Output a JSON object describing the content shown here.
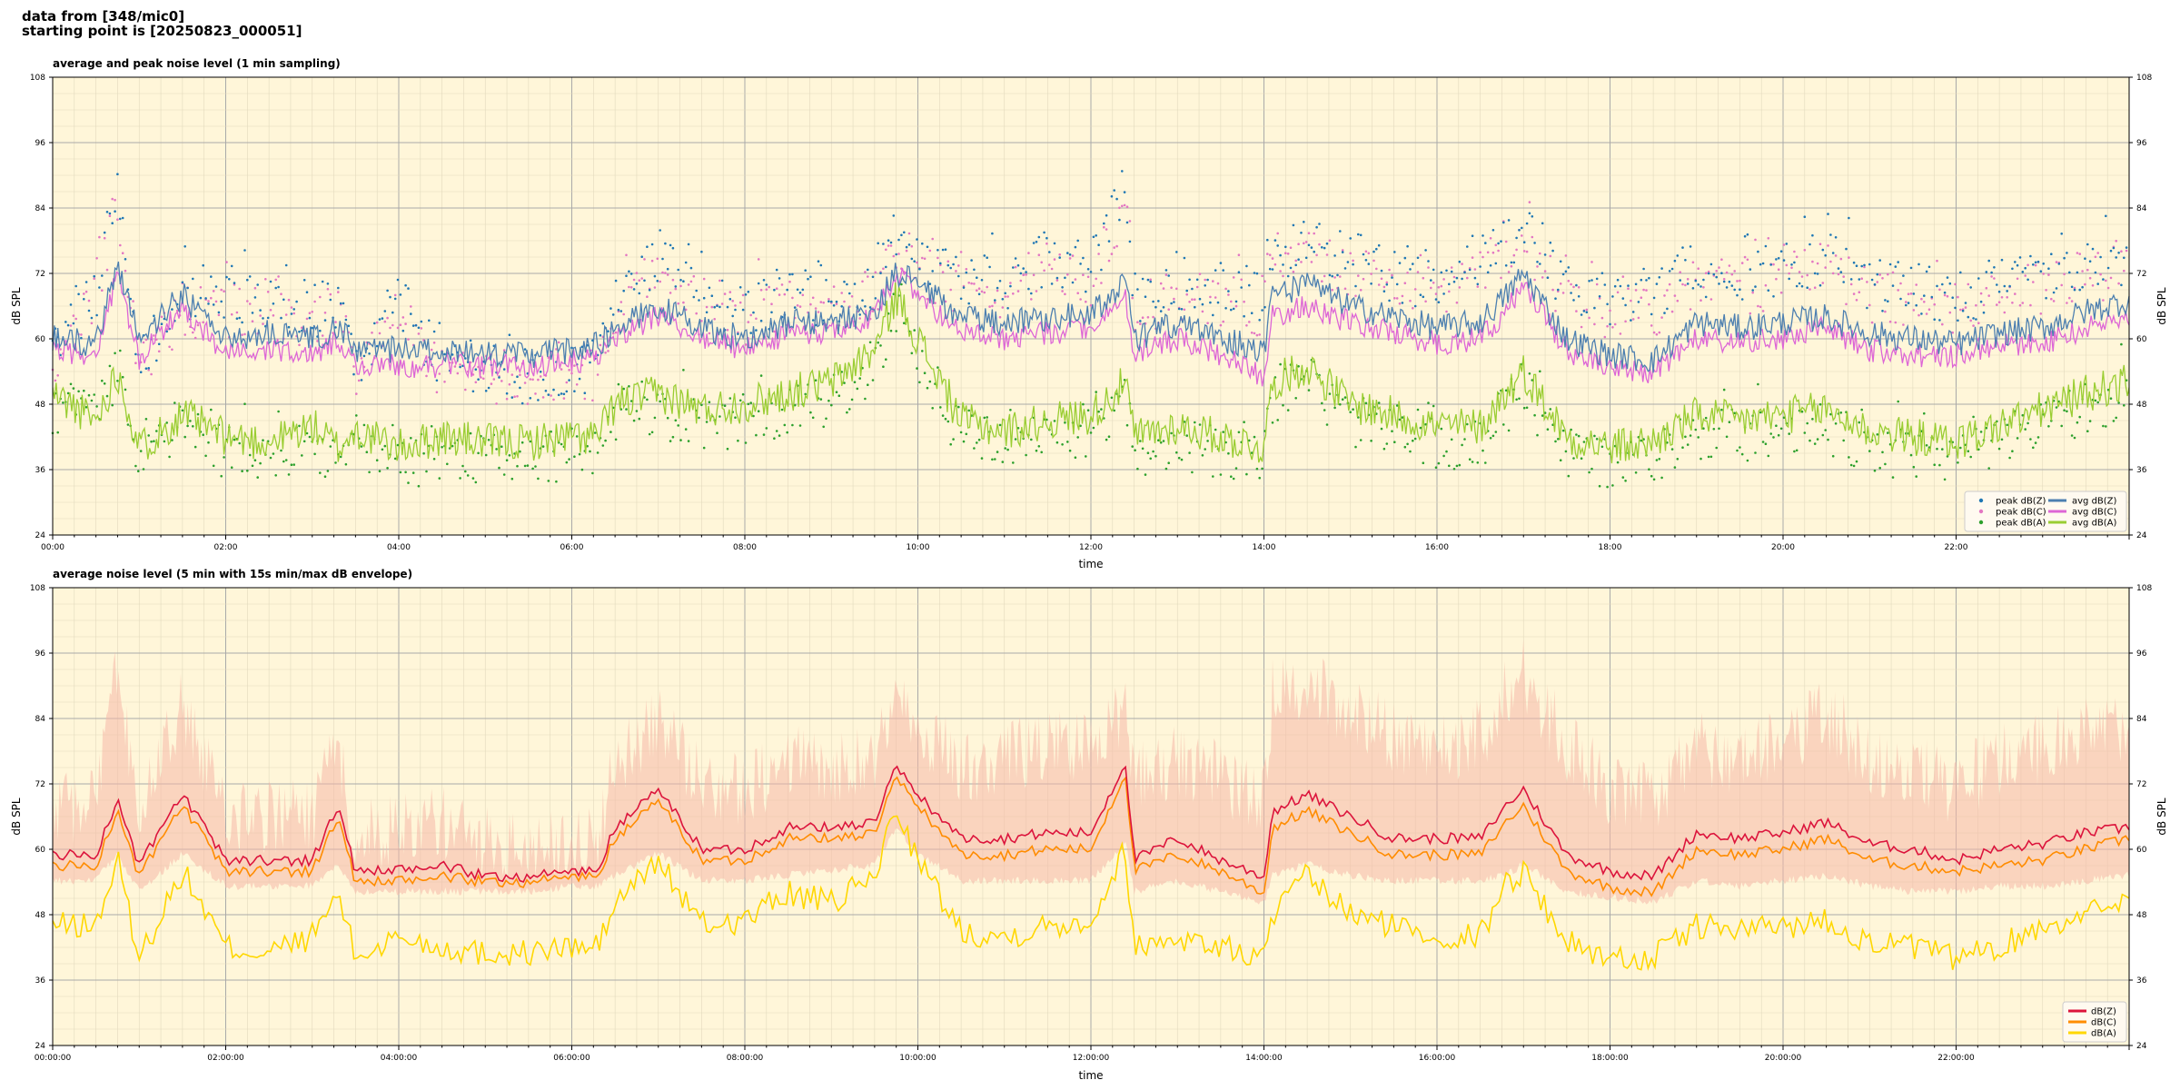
{
  "header": {
    "line1": "data from [348/mic0]",
    "line2": "starting point is [20250823_000051]"
  },
  "colors": {
    "plot_bg": "#fff6d9",
    "peak_z": "#1f77b4",
    "peak_c": "#e377c2",
    "peak_a": "#2ca02c",
    "avg_z": "#4c7fb0",
    "avg_c": "#dd66d6",
    "avg_a": "#9acd32",
    "env_z": "#dc143c",
    "env_c": "#ff8c00",
    "env_a": "#ffd700",
    "envelope_fill": "#f6b8a8"
  },
  "chart_data": [
    {
      "type": "line",
      "title": "average and peak noise level (1 min sampling)",
      "xlabel": "time",
      "ylabel": "dB SPL",
      "ylim": [
        24,
        108
      ],
      "yticks": [
        24,
        36,
        48,
        60,
        72,
        84,
        96,
        108
      ],
      "xlim": [
        0,
        24
      ],
      "xticks": [
        "00:00",
        "02:00",
        "04:00",
        "06:00",
        "08:00",
        "10:00",
        "12:00",
        "14:00",
        "16:00",
        "18:00",
        "20:00",
        "22:00"
      ],
      "grid": true,
      "legend_position": "bottom-right",
      "legend": [
        "peak dB(Z)",
        "peak dB(C)",
        "peak dB(A)",
        "avg dB(Z)",
        "avg dB(C)",
        "avg dB(A)"
      ],
      "x": [
        0,
        0.5,
        0.75,
        1,
        1.5,
        2,
        2.5,
        3,
        3.3,
        3.5,
        4,
        4.5,
        5,
        5.5,
        6,
        6.3,
        6.5,
        7,
        7.5,
        8,
        8.5,
        9,
        9.5,
        9.75,
        10,
        10.5,
        11,
        11.5,
        12,
        12.4,
        12.5,
        13,
        13.5,
        14,
        14.1,
        14.5,
        15,
        15.5,
        16,
        16.5,
        16.8,
        17,
        17.5,
        18,
        18.5,
        19,
        19.5,
        20,
        20.5,
        21,
        21.5,
        22,
        22.5,
        23,
        23.5,
        24
      ],
      "series": [
        {
          "name": "avg dB(Z)",
          "values": [
            60,
            59,
            74,
            60,
            68,
            60,
            61,
            60,
            62,
            58,
            58,
            58,
            57,
            57,
            58,
            59,
            62,
            66,
            62,
            60,
            63,
            63,
            65,
            72,
            70,
            64,
            63,
            64,
            65,
            70,
            60,
            63,
            60,
            58,
            68,
            70,
            66,
            64,
            62,
            63,
            68,
            72,
            60,
            57,
            56,
            63,
            62,
            63,
            64,
            61,
            60,
            59,
            61,
            62,
            65,
            67
          ]
        },
        {
          "name": "avg dB(C)",
          "values": [
            58,
            57,
            72,
            56,
            66,
            57,
            58,
            57,
            60,
            55,
            55,
            55,
            55,
            55,
            56,
            56,
            60,
            64,
            60,
            58,
            61,
            61,
            64,
            72,
            68,
            61,
            60,
            61,
            62,
            68,
            57,
            60,
            57,
            53,
            64,
            66,
            63,
            61,
            59,
            60,
            65,
            70,
            58,
            54,
            54,
            60,
            59,
            60,
            62,
            58,
            57,
            57,
            59,
            59,
            62,
            64
          ]
        },
        {
          "name": "avg dB(A)",
          "values": [
            50,
            45,
            54,
            40,
            46,
            42,
            41,
            44,
            40,
            43,
            40,
            42,
            41,
            41,
            42,
            42,
            48,
            50,
            47,
            48,
            50,
            52,
            58,
            68,
            60,
            45,
            43,
            45,
            46,
            52,
            42,
            44,
            42,
            40,
            52,
            55,
            48,
            46,
            44,
            44,
            50,
            54,
            42,
            40,
            41,
            46,
            45,
            46,
            47,
            43,
            42,
            41,
            44,
            47,
            50,
            52
          ]
        },
        {
          "name": "peak dB(Z)",
          "values": [
            62,
            73,
            93,
            62,
            72,
            72,
            72,
            70,
            72,
            60,
            72,
            60,
            59,
            58,
            59,
            60,
            72,
            80,
            72,
            70,
            73,
            72,
            75,
            85,
            80,
            76,
            75,
            80,
            78,
            92,
            72,
            75,
            74,
            72,
            80,
            82,
            80,
            76,
            75,
            80,
            82,
            85,
            74,
            72,
            72,
            78,
            76,
            78,
            80,
            75,
            74,
            72,
            75,
            76,
            78,
            80
          ]
        },
        {
          "name": "peak dB(C)",
          "values": [
            60,
            72,
            90,
            60,
            70,
            70,
            70,
            68,
            70,
            58,
            70,
            58,
            57,
            57,
            58,
            58,
            70,
            78,
            70,
            68,
            72,
            70,
            73,
            82,
            78,
            74,
            73,
            78,
            76,
            90,
            70,
            73,
            72,
            70,
            78,
            80,
            78,
            74,
            73,
            78,
            80,
            83,
            72,
            70,
            70,
            76,
            74,
            76,
            78,
            73,
            72,
            70,
            73,
            74,
            76,
            78
          ]
        },
        {
          "name": "peak dB(A)",
          "values": [
            52,
            50,
            60,
            43,
            50,
            44,
            43,
            46,
            42,
            45,
            42,
            44,
            43,
            43,
            44,
            44,
            50,
            52,
            49,
            50,
            52,
            54,
            60,
            70,
            62,
            47,
            45,
            47,
            48,
            54,
            44,
            46,
            44,
            42,
            54,
            57,
            50,
            48,
            46,
            46,
            52,
            56,
            44,
            42,
            43,
            48,
            47,
            48,
            49,
            45,
            44,
            43,
            46,
            49,
            52,
            54
          ]
        }
      ]
    },
    {
      "type": "line",
      "title": "average noise level (5 min with 15s min/max dB envelope)",
      "xlabel": "time",
      "ylabel": "dB SPL",
      "ylim": [
        24,
        108
      ],
      "yticks": [
        24,
        36,
        48,
        60,
        72,
        84,
        96,
        108
      ],
      "xlim": [
        0,
        24
      ],
      "xticks": [
        "00:00:00",
        "02:00:00",
        "04:00:00",
        "06:00:00",
        "08:00:00",
        "10:00:00",
        "12:00:00",
        "14:00:00",
        "16:00:00",
        "18:00:00",
        "20:00:00",
        "22:00:00"
      ],
      "grid": true,
      "legend_position": "bottom-right",
      "legend": [
        "dB(Z)",
        "dB(C)",
        "dB(A)"
      ],
      "x": [
        0,
        0.5,
        0.75,
        1,
        1.5,
        2,
        2.5,
        3,
        3.3,
        3.5,
        4,
        4.5,
        5,
        5.5,
        6,
        6.3,
        6.5,
        7,
        7.5,
        8,
        8.5,
        9,
        9.5,
        9.75,
        10,
        10.5,
        11,
        11.5,
        12,
        12.4,
        12.5,
        13,
        13.5,
        14,
        14.1,
        14.5,
        15,
        15.5,
        16,
        16.5,
        16.8,
        17,
        17.5,
        18,
        18.5,
        19,
        19.5,
        20,
        20.5,
        21,
        21.5,
        22,
        22.5,
        23,
        23.5,
        24
      ],
      "series": [
        {
          "name": "dB(Z)",
          "values": [
            59,
            59,
            69,
            57,
            70,
            58,
            58,
            58,
            68,
            56,
            56,
            57,
            55,
            55,
            56,
            56,
            64,
            71,
            60,
            60,
            64,
            64,
            65,
            75,
            70,
            62,
            62,
            63,
            63,
            76,
            58,
            62,
            58,
            55,
            67,
            70,
            66,
            62,
            62,
            62,
            68,
            71,
            59,
            56,
            55,
            63,
            62,
            63,
            65,
            61,
            60,
            58,
            60,
            61,
            63,
            64
          ]
        },
        {
          "name": "dB(C)",
          "values": [
            57,
            57,
            67,
            55,
            68,
            56,
            56,
            56,
            66,
            54,
            54,
            55,
            54,
            54,
            55,
            55,
            62,
            69,
            58,
            58,
            62,
            62,
            63,
            73,
            68,
            59,
            59,
            60,
            60,
            74,
            56,
            59,
            56,
            52,
            64,
            67,
            63,
            59,
            59,
            59,
            65,
            68,
            56,
            53,
            52,
            60,
            59,
            60,
            62,
            58,
            57,
            56,
            57,
            58,
            60,
            62
          ]
        },
        {
          "name": "dB(A)",
          "values": [
            46,
            46,
            58,
            40,
            56,
            42,
            41,
            44,
            52,
            40,
            44,
            42,
            41,
            41,
            42,
            42,
            50,
            58,
            46,
            47,
            52,
            50,
            55,
            68,
            58,
            45,
            44,
            46,
            47,
            60,
            42,
            44,
            42,
            40,
            48,
            55,
            48,
            46,
            44,
            44,
            54,
            56,
            43,
            40,
            40,
            46,
            45,
            46,
            47,
            43,
            42,
            40,
            42,
            46,
            48,
            52
          ]
        },
        {
          "name": "envelope max",
          "values": [
            64,
            66,
            90,
            62,
            84,
            63,
            63,
            63,
            76,
            60,
            61,
            62,
            58,
            57,
            58,
            60,
            72,
            80,
            70,
            68,
            74,
            72,
            74,
            82,
            80,
            72,
            74,
            76,
            76,
            82,
            70,
            74,
            70,
            66,
            86,
            88,
            82,
            78,
            76,
            78,
            86,
            90,
            76,
            68,
            66,
            76,
            74,
            76,
            82,
            74,
            72,
            68,
            74,
            76,
            78,
            80
          ]
        },
        {
          "name": "envelope min",
          "values": [
            55,
            55,
            60,
            53,
            60,
            54,
            54,
            54,
            58,
            53,
            53,
            53,
            53,
            53,
            54,
            54,
            56,
            60,
            55,
            55,
            56,
            57,
            58,
            65,
            60,
            55,
            55,
            55,
            55,
            62,
            53,
            55,
            53,
            51,
            56,
            58,
            56,
            55,
            55,
            55,
            56,
            58,
            53,
            52,
            51,
            55,
            54,
            55,
            56,
            54,
            53,
            53,
            54,
            54,
            55,
            56
          ]
        }
      ]
    }
  ]
}
